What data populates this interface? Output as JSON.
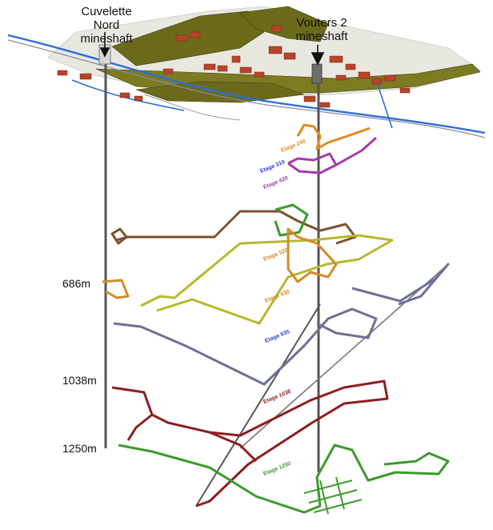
{
  "shafts": {
    "cuvelette": {
      "line1": "Cuvelette Nord",
      "line2": "mineshaft"
    },
    "vouters": {
      "line1": "Vouters 2",
      "line2": "mineshaft"
    }
  },
  "depths": {
    "d686": "686m",
    "d1038": "1038m",
    "d1250": "1250m"
  },
  "levels": {
    "l240": "Etage 240",
    "l310": "Etage 310",
    "l420": "Etage 420",
    "l520": "Etage 520",
    "l630": "Etage 630",
    "l835": "Etage 835",
    "l1038": "Etage 1038",
    "l1250": "Etage 1250"
  },
  "colors": {
    "shaft": "#555555",
    "ground": "#6b6a1a",
    "roof": "#b8442a",
    "water": "#2a6fd6",
    "level240": "#e08a1e",
    "level310": "#a53aa8",
    "level420": "#7a5230",
    "level520": "#b7b82e",
    "level630": "#d58a2a",
    "level835": "#6f7096",
    "level1038": "#8c1f1f",
    "level1250": "#3c9a2d"
  }
}
